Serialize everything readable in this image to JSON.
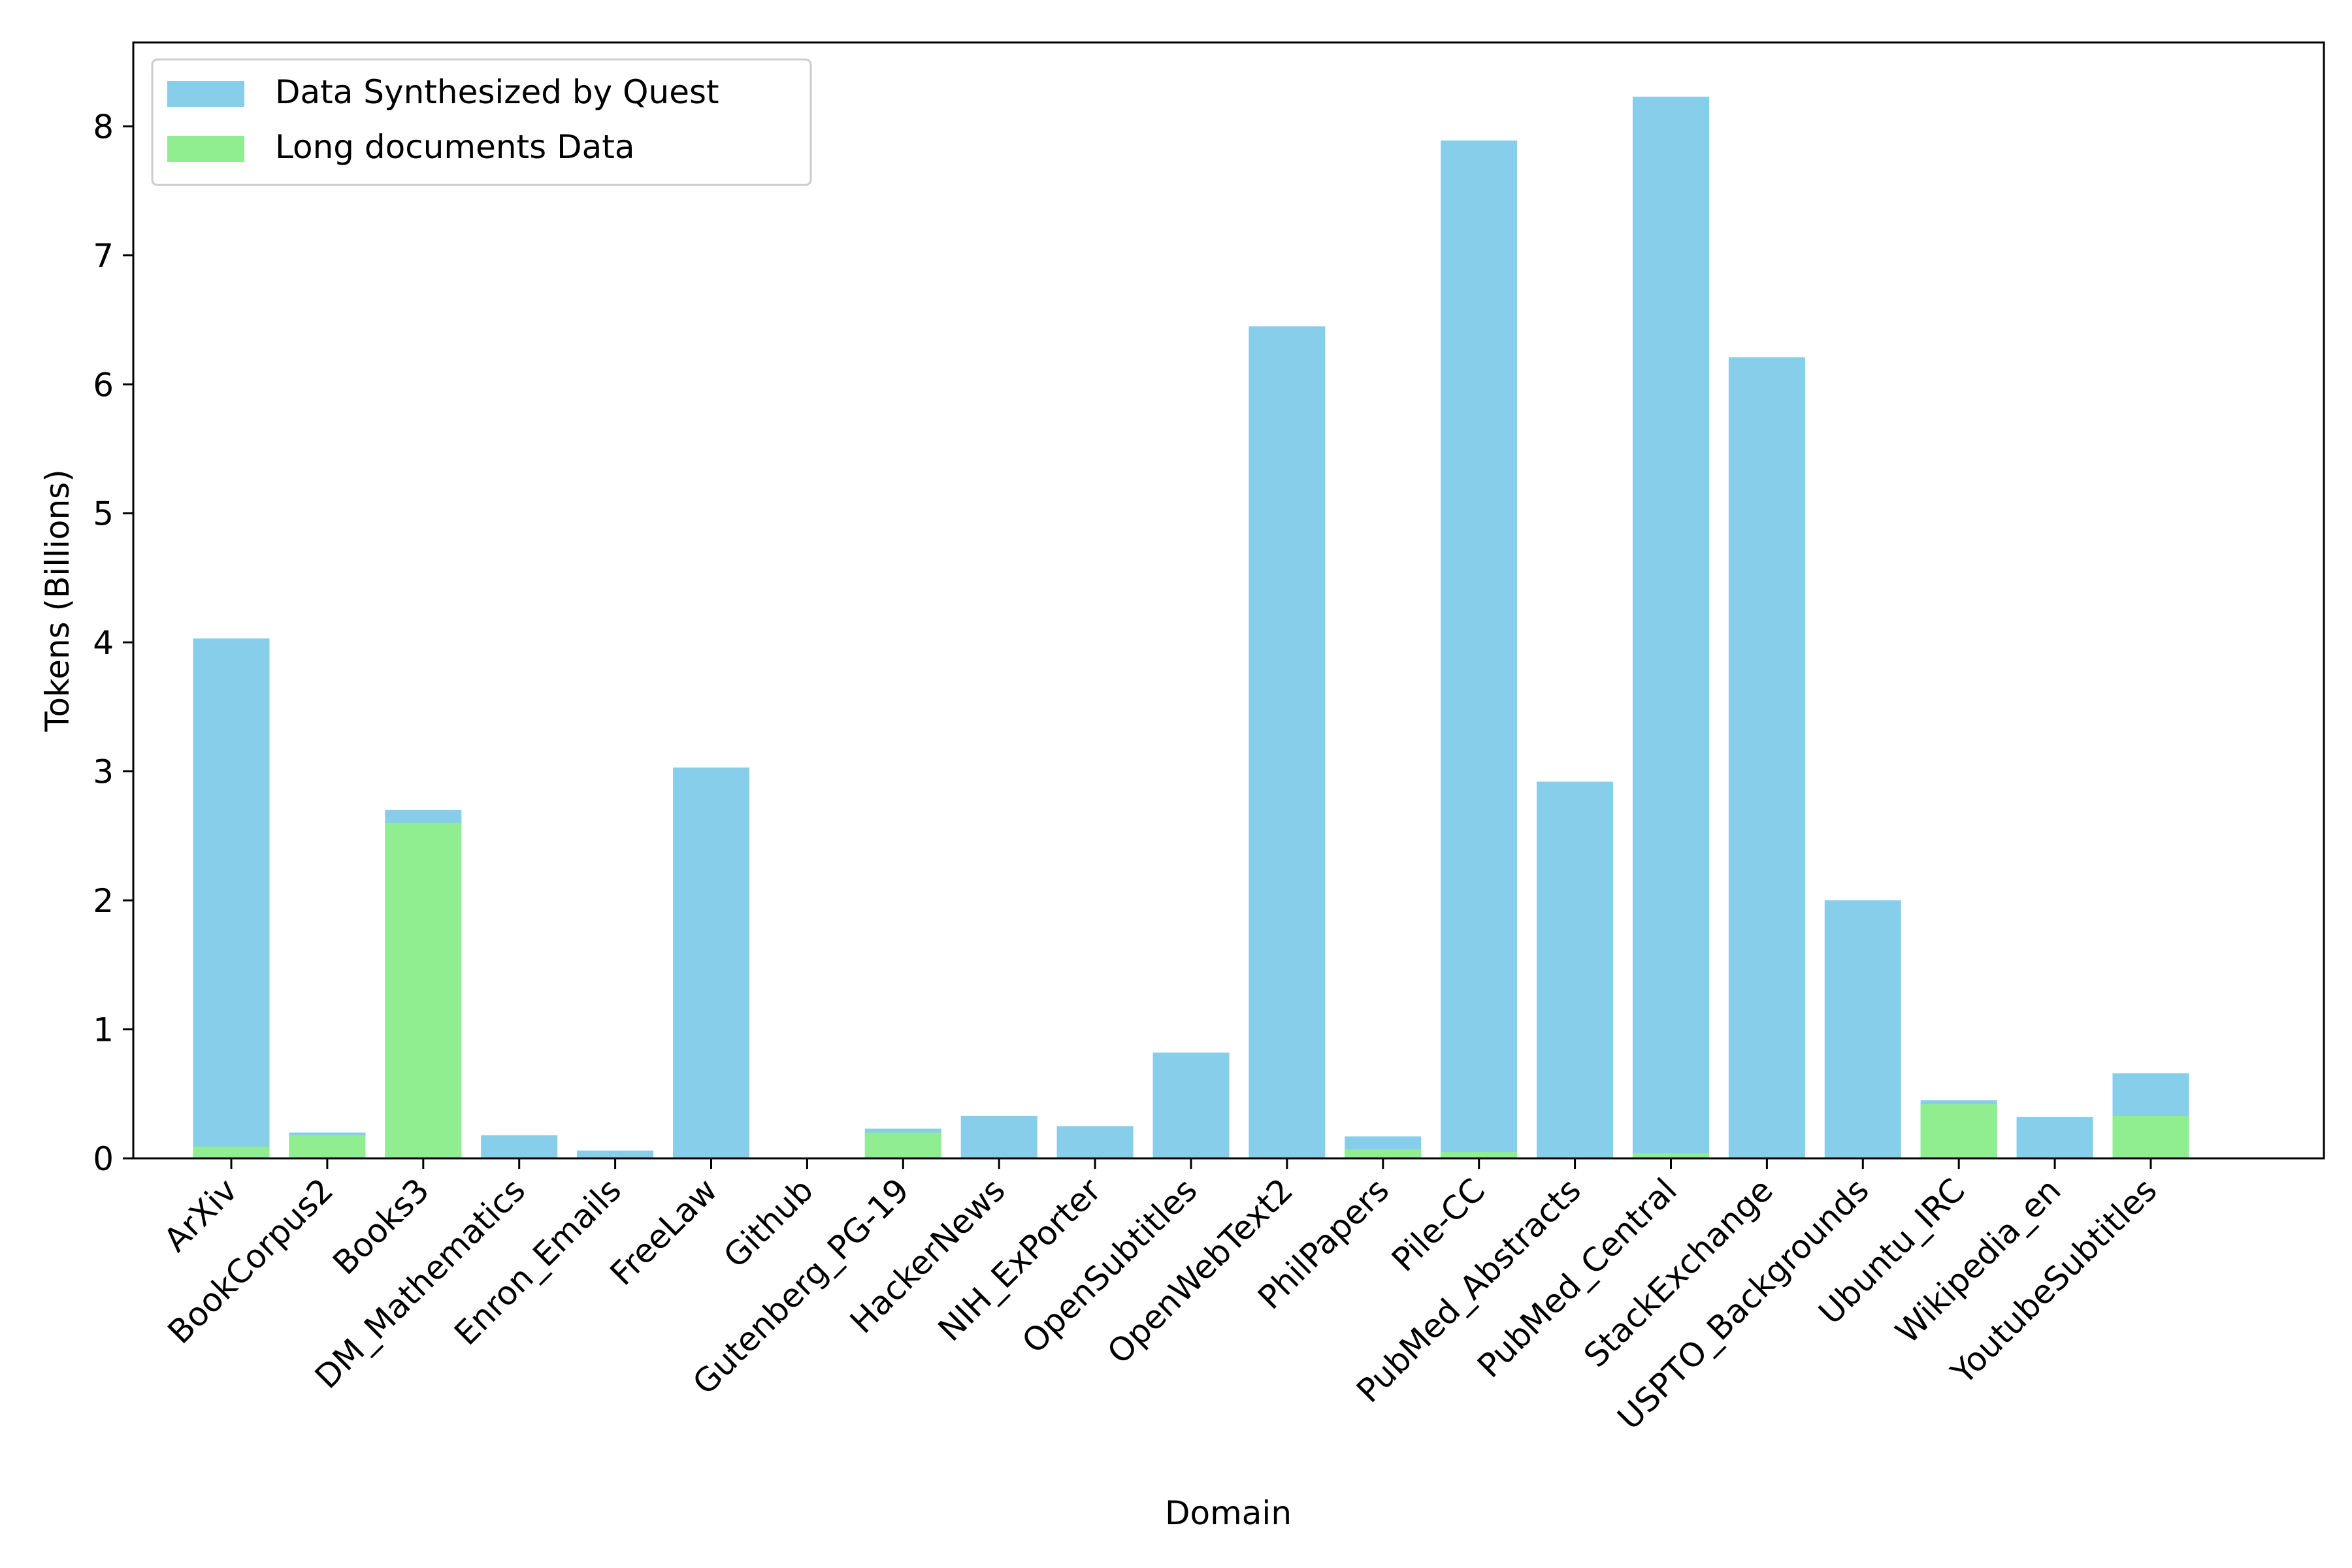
{
  "chart_data": {
    "type": "bar",
    "title": "",
    "xlabel": "Domain",
    "ylabel": "Tokens (Billions)",
    "ylim": [
      0,
      8.65
    ],
    "yticks": [
      0,
      1,
      2,
      3,
      4,
      5,
      6,
      7,
      8
    ],
    "grid": false,
    "legend_position": "top-left",
    "bar_mode": "overlay",
    "categories": [
      "ArXiv",
      "BookCorpus2",
      "Books3",
      "DM_Mathematics",
      "Enron_Emails",
      "FreeLaw",
      "Github",
      "Gutenberg_PG-19",
      "HackerNews",
      "NIH_ExPorter",
      "OpenSubtitles",
      "OpenWebText2",
      "PhilPapers",
      "Pile-CC",
      "PubMed_Abstracts",
      "PubMed_Central",
      "StackExchange",
      "USPTO_Backgrounds",
      "Ubuntu_IRC",
      "Wikipedia_en",
      "YoutubeSubtitles"
    ],
    "series": [
      {
        "name": "Data Synthesized by Quest",
        "color": "#87CEEB",
        "values": [
          4.03,
          0.2,
          2.7,
          0.18,
          0.06,
          3.03,
          0.0,
          0.23,
          0.33,
          0.25,
          0.82,
          6.45,
          0.17,
          7.89,
          2.92,
          8.23,
          6.21,
          2.0,
          0.45,
          0.32,
          0.66
        ]
      },
      {
        "name": "Long documents Data",
        "color": "#90EE90",
        "values": [
          0.09,
          0.18,
          2.6,
          0.0,
          0.0,
          0.0,
          0.0,
          0.2,
          0.0,
          0.0,
          0.0,
          0.0,
          0.07,
          0.05,
          0.0,
          0.04,
          0.0,
          0.0,
          0.42,
          0.0,
          0.33
        ]
      }
    ]
  }
}
